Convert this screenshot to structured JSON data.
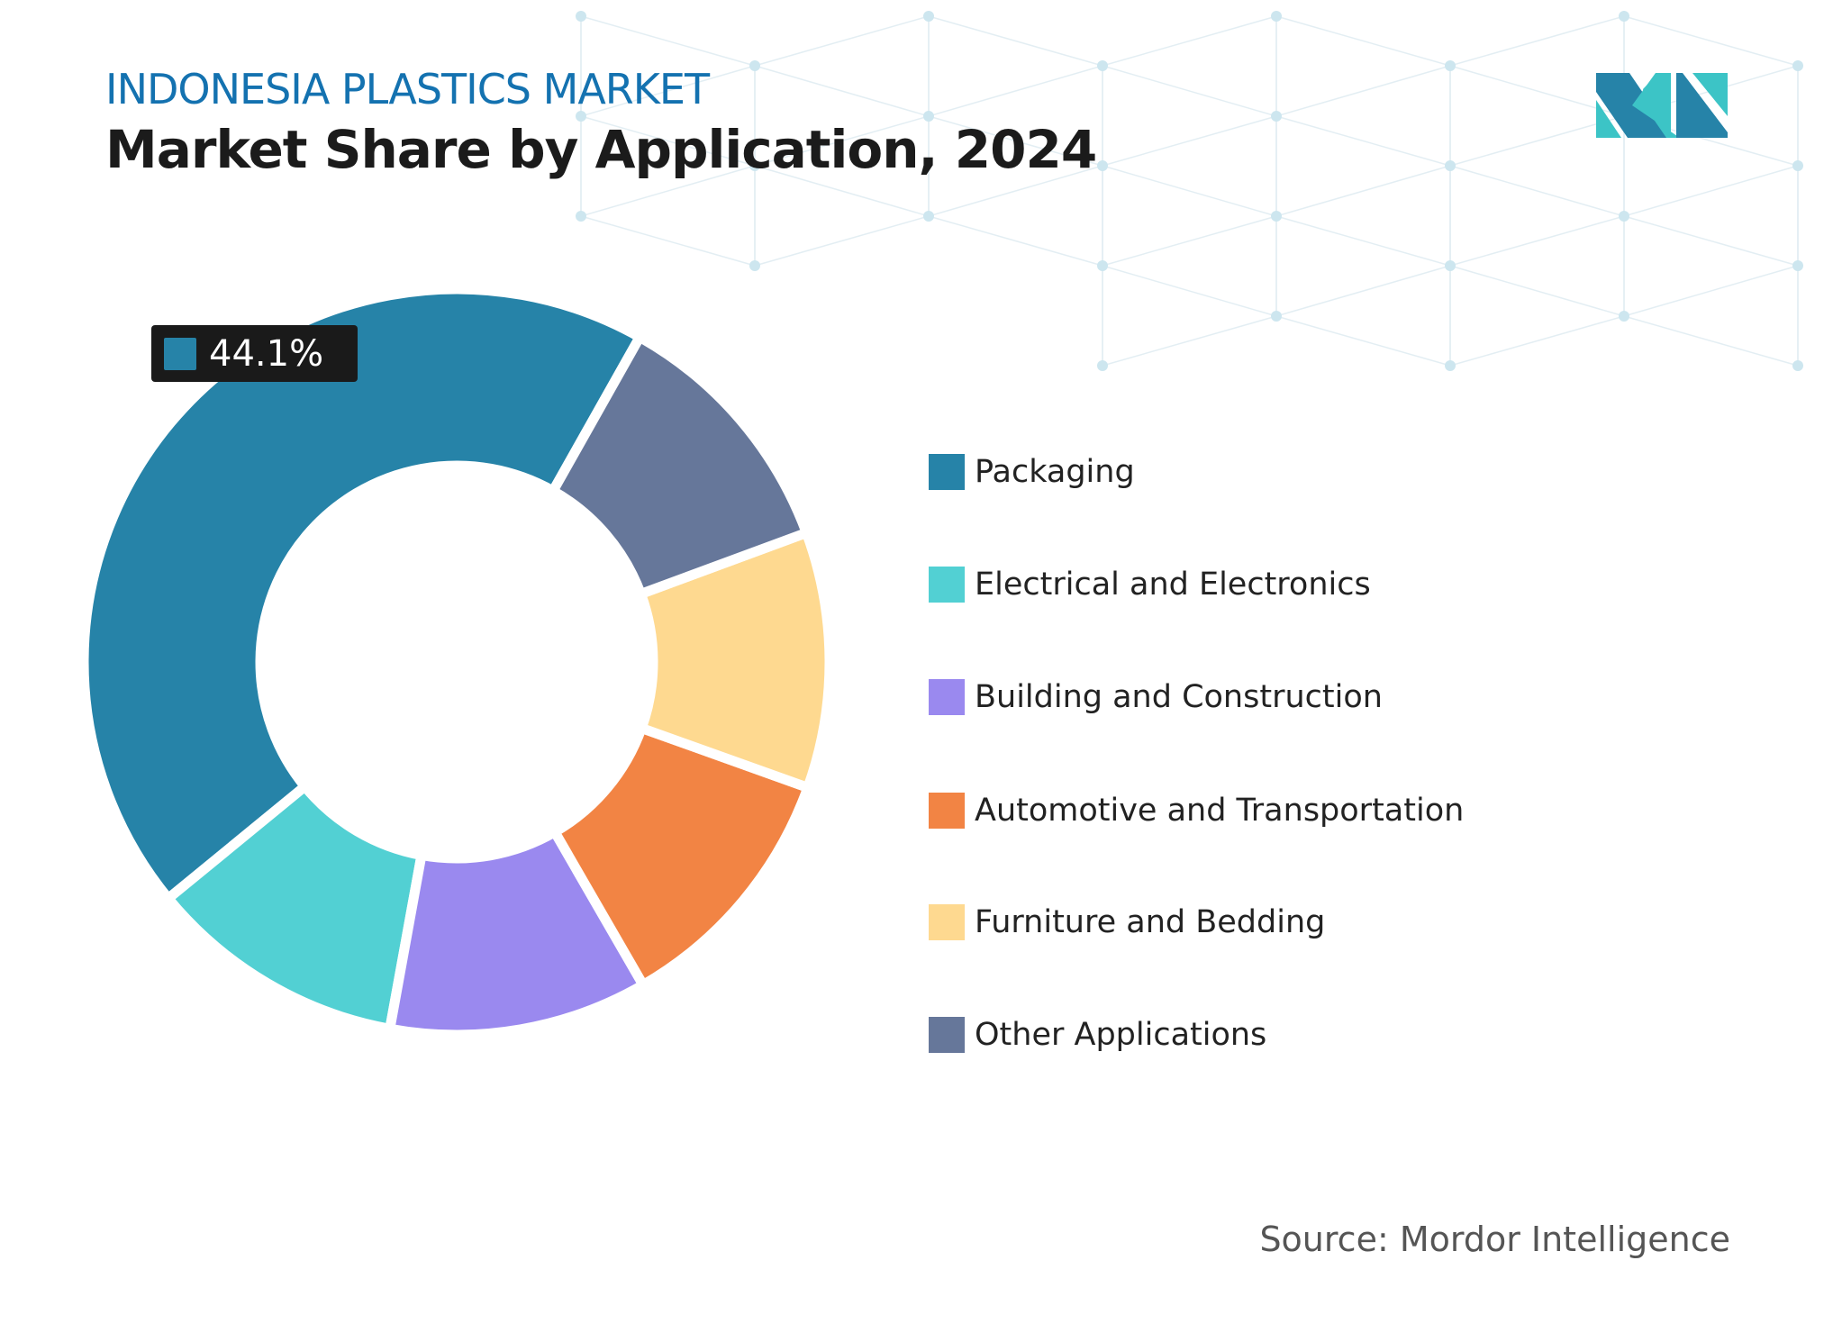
{
  "header": {
    "subtitle": "INDONESIA PLASTICS MARKET",
    "title": "Market Share by Application, 2024"
  },
  "callout": {
    "value": "44.1%",
    "color": "#2683A8"
  },
  "source": "Source: Mordor Intelligence",
  "logo": {
    "colors": [
      "#2683A8",
      "#3CC4C6"
    ]
  },
  "chart_data": {
    "type": "donut",
    "title": "Market Share by Application, 2024",
    "unit": "%",
    "legend_position": "right",
    "categories": [
      "Packaging",
      "Electrical and Electronics",
      "Building and Construction",
      "Automotive and Transportation",
      "Furniture and Bedding",
      "Other Applications"
    ],
    "values": [
      44.1,
      11.2,
      11.2,
      11.2,
      11.1,
      11.2
    ],
    "colors": [
      "#2683A8",
      "#52D0D3",
      "#9A89EF",
      "#F28444",
      "#FED990",
      "#66779A"
    ],
    "data_labels": [
      {
        "category": "Packaging",
        "text": "44.1%"
      }
    ]
  }
}
